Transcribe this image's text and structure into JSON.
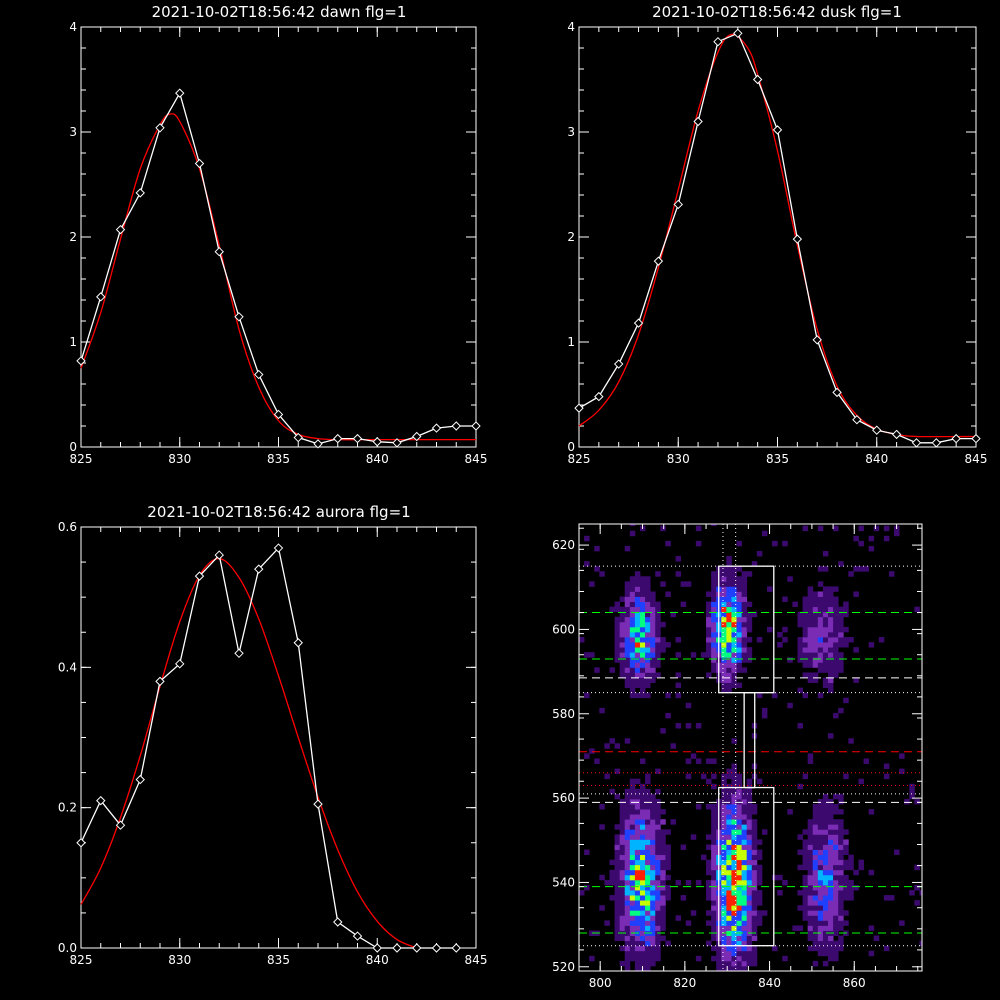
{
  "chart_data": [
    {
      "type": "line",
      "title": "2021-10-02T18:56:42 dawn flg=1",
      "xlim": [
        825,
        845
      ],
      "ylim": [
        0,
        4
      ],
      "x_ticks": [
        "825",
        "830",
        "835",
        "840",
        "845"
      ],
      "y_ticks": [
        "0",
        "1",
        "2",
        "3",
        "4"
      ],
      "series": [
        {
          "color": "#ffffff",
          "marker": "diamond",
          "x": [
            825,
            826,
            827,
            828,
            829,
            830,
            831,
            832,
            833,
            834,
            835,
            836,
            837,
            838,
            839,
            840,
            841,
            842,
            843,
            844,
            845
          ],
          "y": [
            0.82,
            1.43,
            2.07,
            2.42,
            3.04,
            3.37,
            2.7,
            1.86,
            1.24,
            0.69,
            0.31,
            0.09,
            0.03,
            0.08,
            0.08,
            0.05,
            0.04,
            0.1,
            0.18,
            0.2,
            0.2
          ]
        },
        {
          "color": "#ff0000",
          "marker": "none",
          "x": [
            825,
            826,
            827,
            828,
            829,
            829.5,
            830,
            831,
            832,
            833,
            834,
            835,
            836,
            837,
            838,
            840,
            845
          ],
          "y": [
            0.75,
            1.28,
            1.98,
            2.65,
            3.07,
            3.17,
            3.1,
            2.65,
            1.92,
            1.12,
            0.57,
            0.25,
            0.12,
            0.08,
            0.07,
            0.07,
            0.07
          ]
        }
      ]
    },
    {
      "type": "line",
      "title": "2021-10-02T18:56:42 dusk flg=1",
      "xlim": [
        825,
        845
      ],
      "ylim": [
        0,
        4
      ],
      "x_ticks": [
        "825",
        "830",
        "835",
        "840",
        "845"
      ],
      "y_ticks": [
        "0",
        "1",
        "2",
        "3",
        "4"
      ],
      "series": [
        {
          "color": "#ffffff",
          "marker": "diamond",
          "x": [
            825,
            826,
            827,
            828,
            829,
            830,
            831,
            832,
            833,
            834,
            835,
            836,
            837,
            838,
            839,
            840,
            841,
            842,
            843,
            844,
            845
          ],
          "y": [
            0.37,
            0.48,
            0.79,
            1.18,
            1.77,
            2.31,
            3.1,
            3.86,
            3.94,
            3.5,
            3.02,
            1.98,
            1.02,
            0.52,
            0.26,
            0.16,
            0.12,
            0.04,
            0.04,
            0.08,
            0.08
          ]
        },
        {
          "color": "#ff0000",
          "marker": "none",
          "x": [
            825,
            826,
            827,
            828,
            829,
            830,
            831,
            832,
            832.7,
            833.5,
            834,
            835,
            836,
            837,
            838,
            839,
            840,
            841,
            842,
            845
          ],
          "y": [
            0.2,
            0.35,
            0.62,
            1.07,
            1.71,
            2.45,
            3.2,
            3.76,
            3.93,
            3.8,
            3.55,
            2.82,
            1.92,
            1.12,
            0.58,
            0.3,
            0.17,
            0.12,
            0.1,
            0.1
          ]
        }
      ]
    },
    {
      "type": "line",
      "title": "2021-10-02T18:56:42 aurora flg=1",
      "xlim": [
        825,
        845
      ],
      "ylim": [
        0,
        0.6
      ],
      "x_ticks": [
        "825",
        "830",
        "835",
        "840",
        "845"
      ],
      "y_ticks": [
        "0.0",
        "0.2",
        "0.4",
        "0.6"
      ],
      "series": [
        {
          "color": "#ffffff",
          "marker": "diamond",
          "x": [
            825,
            826,
            827,
            828,
            829,
            830,
            831,
            832,
            833,
            834,
            835,
            836,
            837,
            838,
            839,
            840,
            841,
            842,
            843,
            844
          ],
          "y": [
            0.15,
            0.21,
            0.175,
            0.24,
            0.38,
            0.405,
            0.53,
            0.56,
            0.42,
            0.54,
            0.57,
            0.435,
            0.205,
            0.037,
            0.017,
            0.0,
            0.0,
            0.0,
            0.0,
            0.0
          ]
        },
        {
          "color": "#ff0000",
          "marker": "none",
          "x": [
            825,
            826,
            827,
            828,
            829,
            830,
            831,
            832,
            833,
            834,
            835,
            836,
            837,
            838,
            839,
            840,
            841,
            842
          ],
          "y": [
            0.062,
            0.114,
            0.186,
            0.274,
            0.373,
            0.465,
            0.531,
            0.555,
            0.528,
            0.469,
            0.388,
            0.3,
            0.215,
            0.14,
            0.08,
            0.038,
            0.012,
            0.0
          ]
        }
      ]
    },
    {
      "type": "heatmap",
      "xlim": [
        795,
        876
      ],
      "ylim": [
        519,
        625
      ],
      "x_ticks": [
        "800",
        "820",
        "840",
        "860"
      ],
      "y_ticks": [
        "520",
        "540",
        "560",
        "580",
        "600",
        "620"
      ],
      "colormap": [
        "#000000",
        "#3c0a6e",
        "#7a2db4",
        "#2040ff",
        "#00b4ff",
        "#00ff80",
        "#c8ff00",
        "#ff2000"
      ],
      "blobs": [
        {
          "x": 808.5,
          "y": 598,
          "sx": 2.8,
          "sy": 7,
          "amp": 0.62
        },
        {
          "x": 829.5,
          "y": 600,
          "sx": 2.5,
          "sy": 7,
          "amp": 0.85
        },
        {
          "x": 852,
          "y": 598,
          "sx": 3.5,
          "sy": 7,
          "amp": 0.3
        },
        {
          "x": 809,
          "y": 540,
          "sx": 3.2,
          "sy": 11,
          "amp": 0.72
        },
        {
          "x": 831,
          "y": 540,
          "sx": 2.8,
          "sy": 12,
          "amp": 0.95
        },
        {
          "x": 852.5,
          "y": 540,
          "sx": 3.2,
          "sy": 11,
          "amp": 0.4
        }
      ],
      "boxes": [
        {
          "x0": 828,
          "x1": 841,
          "y0": 585,
          "y1": 615
        },
        {
          "x0": 828,
          "x1": 841,
          "y0": 525,
          "y1": 562.5
        },
        {
          "x0": 834,
          "x1": 836.5,
          "y0": 562.5,
          "y1": 585
        }
      ],
      "hlines": [
        {
          "y": 615,
          "color": "#ffffff",
          "style": "dotted"
        },
        {
          "y": 604,
          "color": "#00ff00",
          "style": "dashed"
        },
        {
          "y": 593,
          "color": "#00ff00",
          "style": "dashed"
        },
        {
          "y": 588.5,
          "color": "#ffffff",
          "style": "dashed"
        },
        {
          "y": 585,
          "color": "#ffffff",
          "style": "dotted"
        },
        {
          "y": 571,
          "color": "#ff0000",
          "style": "dashed"
        },
        {
          "y": 566,
          "color": "#ff0000",
          "style": "dotted"
        },
        {
          "y": 563,
          "color": "#ff0000",
          "style": "dotted"
        },
        {
          "y": 561,
          "color": "#ffffff",
          "style": "dotted"
        },
        {
          "y": 559,
          "color": "#ffffff",
          "style": "dashed"
        },
        {
          "y": 539,
          "color": "#00ff00",
          "style": "dashed"
        },
        {
          "y": 528,
          "color": "#00ff00",
          "style": "dashed"
        },
        {
          "y": 525,
          "color": "#ffffff",
          "style": "dotted"
        }
      ],
      "vlines": [
        {
          "x": 829,
          "color": "#ffffff",
          "style": "dotted"
        },
        {
          "x": 832,
          "color": "#ffffff",
          "style": "dotted"
        }
      ]
    }
  ]
}
